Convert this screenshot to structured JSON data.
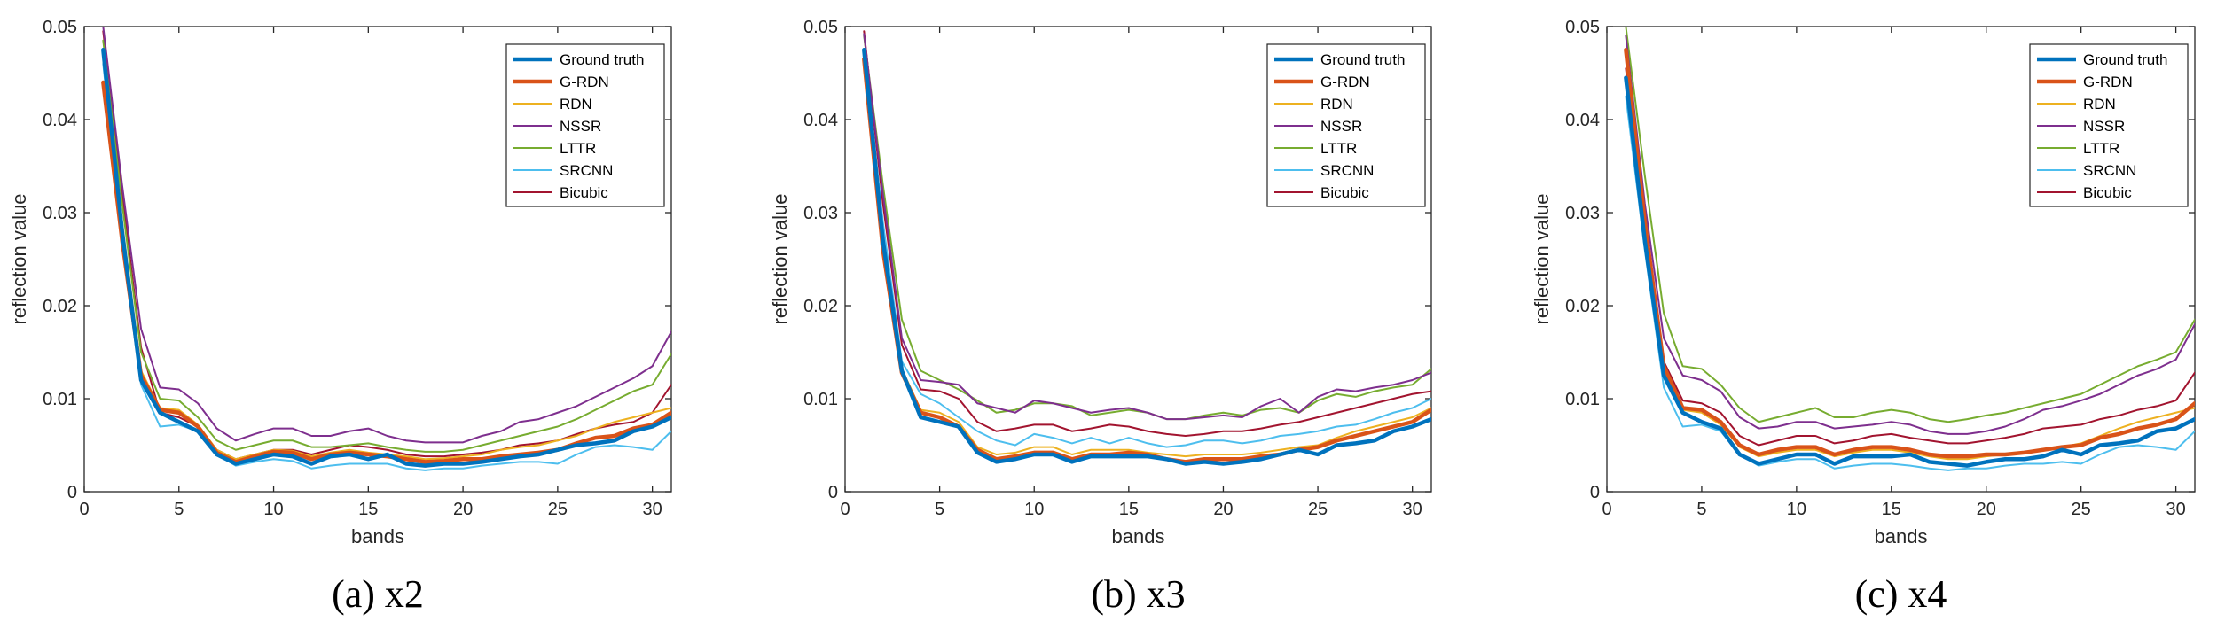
{
  "chart_data": [
    {
      "type": "line",
      "caption": "(a) x2",
      "xlabel": "bands",
      "ylabel": "reflection value",
      "xlim": [
        0,
        31
      ],
      "ylim": [
        0,
        0.05
      ],
      "xticks": [
        "0",
        "5",
        "10",
        "15",
        "20",
        "25",
        "30"
      ],
      "yticks": [
        "0",
        "0.01",
        "0.02",
        "0.03",
        "0.04",
        "0.05"
      ],
      "legend_position": "top-right",
      "x": [
        1,
        2,
        3,
        4,
        5,
        6,
        7,
        8,
        9,
        10,
        11,
        12,
        13,
        14,
        15,
        16,
        17,
        18,
        19,
        20,
        21,
        22,
        23,
        24,
        25,
        26,
        27,
        28,
        29,
        30,
        31
      ],
      "series": [
        {
          "name": "Ground truth",
          "color": "#0072bd",
          "width": 4.5,
          "values": [
            0.0475,
            0.028,
            0.012,
            0.0085,
            0.0075,
            0.0065,
            0.004,
            0.003,
            0.0035,
            0.004,
            0.0038,
            0.003,
            0.0038,
            0.004,
            0.0035,
            0.004,
            0.003,
            0.0028,
            0.003,
            0.003,
            0.0032,
            0.0035,
            0.0038,
            0.004,
            0.0045,
            0.005,
            0.0052,
            0.0055,
            0.0065,
            0.007,
            0.008
          ]
        },
        {
          "name": "G-RDN",
          "color": "#d95319",
          "width": 4.5,
          "values": [
            0.044,
            0.027,
            0.0125,
            0.0088,
            0.0085,
            0.007,
            0.0042,
            0.0032,
            0.0038,
            0.0043,
            0.0042,
            0.0035,
            0.004,
            0.0042,
            0.004,
            0.0038,
            0.0035,
            0.0032,
            0.0033,
            0.0035,
            0.0035,
            0.0038,
            0.004,
            0.0042,
            0.0045,
            0.0052,
            0.0058,
            0.006,
            0.0068,
            0.0072,
            0.0085
          ]
        },
        {
          "name": "RDN",
          "color": "#edb120",
          "width": 2,
          "values": [
            0.0465,
            0.029,
            0.013,
            0.009,
            0.0088,
            0.0072,
            0.0045,
            0.0035,
            0.004,
            0.0045,
            0.0044,
            0.0038,
            0.0042,
            0.0045,
            0.0042,
            0.004,
            0.0038,
            0.0035,
            0.0036,
            0.0038,
            0.004,
            0.0045,
            0.0048,
            0.005,
            0.0055,
            0.006,
            0.0068,
            0.0075,
            0.008,
            0.0085,
            0.009
          ]
        },
        {
          "name": "NSSR",
          "color": "#7e2f8e",
          "width": 2,
          "values": [
            0.05,
            0.033,
            0.0175,
            0.0112,
            0.011,
            0.0095,
            0.0068,
            0.0055,
            0.0062,
            0.0068,
            0.0068,
            0.006,
            0.006,
            0.0065,
            0.0068,
            0.006,
            0.0055,
            0.0053,
            0.0053,
            0.0053,
            0.006,
            0.0065,
            0.0075,
            0.0078,
            0.0085,
            0.0092,
            0.0102,
            0.0112,
            0.0122,
            0.0135,
            0.0172
          ]
        },
        {
          "name": "LTTR",
          "color": "#77ac30",
          "width": 2,
          "values": [
            0.0485,
            0.031,
            0.015,
            0.01,
            0.0098,
            0.008,
            0.0055,
            0.0045,
            0.005,
            0.0055,
            0.0055,
            0.0048,
            0.0048,
            0.005,
            0.0052,
            0.0048,
            0.0045,
            0.0043,
            0.0043,
            0.0045,
            0.005,
            0.0055,
            0.006,
            0.0065,
            0.007,
            0.0078,
            0.0088,
            0.0098,
            0.0108,
            0.0115,
            0.0148
          ]
        },
        {
          "name": "SRCNN",
          "color": "#4dbeee",
          "width": 2,
          "values": [
            0.046,
            0.027,
            0.0115,
            0.007,
            0.0072,
            0.0065,
            0.004,
            0.0028,
            0.0032,
            0.0035,
            0.0033,
            0.0025,
            0.0028,
            0.003,
            0.003,
            0.003,
            0.0025,
            0.0023,
            0.0025,
            0.0025,
            0.0028,
            0.003,
            0.0032,
            0.0032,
            0.003,
            0.004,
            0.0048,
            0.005,
            0.0048,
            0.0045,
            0.0065
          ]
        },
        {
          "name": "Bicubic",
          "color": "#a2142f",
          "width": 2,
          "values": [
            0.0495,
            0.032,
            0.0155,
            0.0085,
            0.008,
            0.007,
            0.0045,
            0.0035,
            0.004,
            0.0045,
            0.0045,
            0.004,
            0.0045,
            0.005,
            0.0048,
            0.0045,
            0.004,
            0.0038,
            0.0038,
            0.004,
            0.0042,
            0.0045,
            0.005,
            0.0052,
            0.0055,
            0.0062,
            0.0068,
            0.0072,
            0.0075,
            0.0085,
            0.0115
          ]
        }
      ]
    },
    {
      "type": "line",
      "caption": "(b) x3",
      "xlabel": "bands",
      "ylabel": "reflection value",
      "xlim": [
        0,
        31
      ],
      "ylim": [
        0,
        0.05
      ],
      "xticks": [
        "0",
        "5",
        "10",
        "15",
        "20",
        "25",
        "30"
      ],
      "yticks": [
        "0",
        "0.01",
        "0.02",
        "0.03",
        "0.04",
        "0.05"
      ],
      "legend_position": "top-right",
      "x": [
        1,
        2,
        3,
        4,
        5,
        6,
        7,
        8,
        9,
        10,
        11,
        12,
        13,
        14,
        15,
        16,
        17,
        18,
        19,
        20,
        21,
        22,
        23,
        24,
        25,
        26,
        27,
        28,
        29,
        30,
        31
      ],
      "series": [
        {
          "name": "Ground truth",
          "color": "#0072bd",
          "width": 4.5,
          "values": [
            0.0475,
            0.027,
            0.013,
            0.008,
            0.0075,
            0.007,
            0.0042,
            0.0032,
            0.0035,
            0.004,
            0.004,
            0.0032,
            0.0038,
            0.0038,
            0.0038,
            0.0038,
            0.0035,
            0.003,
            0.0032,
            0.003,
            0.0032,
            0.0035,
            0.004,
            0.0045,
            0.004,
            0.005,
            0.0052,
            0.0055,
            0.0065,
            0.007,
            0.0078
          ]
        },
        {
          "name": "G-RDN",
          "color": "#d95319",
          "width": 4.5,
          "values": [
            0.0465,
            0.026,
            0.0128,
            0.0085,
            0.008,
            0.007,
            0.0045,
            0.0035,
            0.0038,
            0.0042,
            0.0042,
            0.0035,
            0.004,
            0.004,
            0.0042,
            0.004,
            0.0035,
            0.0032,
            0.0035,
            0.0035,
            0.0035,
            0.0038,
            0.004,
            0.0045,
            0.0048,
            0.0055,
            0.006,
            0.0065,
            0.007,
            0.0075,
            0.0088
          ]
        },
        {
          "name": "RDN",
          "color": "#edb120",
          "width": 2,
          "values": [
            0.047,
            0.0275,
            0.0132,
            0.0088,
            0.0085,
            0.0075,
            0.0048,
            0.004,
            0.0042,
            0.0048,
            0.0048,
            0.004,
            0.0045,
            0.0045,
            0.0045,
            0.0042,
            0.004,
            0.0038,
            0.004,
            0.004,
            0.004,
            0.0042,
            0.0045,
            0.0048,
            0.005,
            0.0058,
            0.0065,
            0.007,
            0.0075,
            0.008,
            0.009
          ]
        },
        {
          "name": "NSSR",
          "color": "#7e2f8e",
          "width": 2,
          "values": [
            0.0492,
            0.032,
            0.0165,
            0.012,
            0.0118,
            0.0115,
            0.0095,
            0.009,
            0.0085,
            0.0098,
            0.0095,
            0.009,
            0.0085,
            0.0088,
            0.009,
            0.0085,
            0.0078,
            0.0078,
            0.008,
            0.0082,
            0.008,
            0.0092,
            0.01,
            0.0085,
            0.0102,
            0.011,
            0.0108,
            0.0112,
            0.0115,
            0.012,
            0.0128
          ]
        },
        {
          "name": "LTTR",
          "color": "#77ac30",
          "width": 2,
          "values": [
            0.049,
            0.033,
            0.0185,
            0.013,
            0.012,
            0.011,
            0.0098,
            0.0085,
            0.0088,
            0.0095,
            0.0095,
            0.0092,
            0.0082,
            0.0085,
            0.0088,
            0.0085,
            0.0078,
            0.0078,
            0.0082,
            0.0085,
            0.0082,
            0.0088,
            0.009,
            0.0085,
            0.0098,
            0.0105,
            0.0102,
            0.0108,
            0.0112,
            0.0115,
            0.0132
          ]
        },
        {
          "name": "SRCNN",
          "color": "#4dbeee",
          "width": 2,
          "values": [
            0.0475,
            0.029,
            0.014,
            0.0105,
            0.0095,
            0.008,
            0.0065,
            0.0055,
            0.005,
            0.0062,
            0.0058,
            0.0052,
            0.0058,
            0.0052,
            0.0058,
            0.0052,
            0.0048,
            0.005,
            0.0055,
            0.0055,
            0.0052,
            0.0055,
            0.006,
            0.0062,
            0.0065,
            0.007,
            0.0072,
            0.0078,
            0.0085,
            0.009,
            0.01
          ]
        },
        {
          "name": "Bicubic",
          "color": "#a2142f",
          "width": 2,
          "values": [
            0.0495,
            0.031,
            0.0158,
            0.011,
            0.0108,
            0.01,
            0.0075,
            0.0065,
            0.0068,
            0.0072,
            0.0072,
            0.0065,
            0.0068,
            0.0072,
            0.007,
            0.0065,
            0.0062,
            0.006,
            0.0062,
            0.0065,
            0.0065,
            0.0068,
            0.0072,
            0.0075,
            0.008,
            0.0085,
            0.009,
            0.0095,
            0.01,
            0.0105,
            0.0108
          ]
        }
      ]
    },
    {
      "type": "line",
      "caption": "(c) x4",
      "xlabel": "bands",
      "ylabel": "reflection value",
      "xlim": [
        0,
        31
      ],
      "ylim": [
        0,
        0.05
      ],
      "xticks": [
        "0",
        "5",
        "10",
        "15",
        "20",
        "25",
        "30"
      ],
      "yticks": [
        "0",
        "0.01",
        "0.02",
        "0.03",
        "0.04",
        "0.05"
      ],
      "legend_position": "top-right",
      "x": [
        1,
        2,
        3,
        4,
        5,
        6,
        7,
        8,
        9,
        10,
        11,
        12,
        13,
        14,
        15,
        16,
        17,
        18,
        19,
        20,
        21,
        22,
        23,
        24,
        25,
        26,
        27,
        28,
        29,
        30,
        31
      ],
      "series": [
        {
          "name": "Ground truth",
          "color": "#0072bd",
          "width": 4.5,
          "values": [
            0.0445,
            0.027,
            0.0125,
            0.0085,
            0.0075,
            0.0068,
            0.004,
            0.003,
            0.0035,
            0.004,
            0.004,
            0.003,
            0.0038,
            0.0038,
            0.0038,
            0.004,
            0.0032,
            0.003,
            0.0028,
            0.0032,
            0.0035,
            0.0035,
            0.0038,
            0.0045,
            0.004,
            0.005,
            0.0052,
            0.0055,
            0.0065,
            0.0068,
            0.0078
          ]
        },
        {
          "name": "G-RDN",
          "color": "#d95319",
          "width": 4.5,
          "values": [
            0.0475,
            0.029,
            0.0135,
            0.009,
            0.0088,
            0.0075,
            0.005,
            0.004,
            0.0045,
            0.0048,
            0.0048,
            0.004,
            0.0045,
            0.0048,
            0.0048,
            0.0045,
            0.004,
            0.0038,
            0.0038,
            0.004,
            0.004,
            0.0042,
            0.0045,
            0.0048,
            0.005,
            0.0058,
            0.0062,
            0.0068,
            0.0072,
            0.0078,
            0.0095
          ]
        },
        {
          "name": "RDN",
          "color": "#edb120",
          "width": 2,
          "values": [
            0.047,
            0.0285,
            0.0132,
            0.0088,
            0.0085,
            0.0072,
            0.0048,
            0.0038,
            0.0042,
            0.0045,
            0.0045,
            0.0038,
            0.0042,
            0.0045,
            0.0045,
            0.0042,
            0.0038,
            0.0035,
            0.0035,
            0.0038,
            0.004,
            0.0042,
            0.0045,
            0.0048,
            0.0052,
            0.006,
            0.0068,
            0.0075,
            0.008,
            0.0085,
            0.009
          ]
        },
        {
          "name": "NSSR",
          "color": "#7e2f8e",
          "width": 2,
          "values": [
            0.049,
            0.031,
            0.0165,
            0.0125,
            0.012,
            0.0108,
            0.008,
            0.0068,
            0.007,
            0.0075,
            0.0075,
            0.0068,
            0.007,
            0.0072,
            0.0075,
            0.0072,
            0.0065,
            0.0062,
            0.0062,
            0.0065,
            0.007,
            0.0078,
            0.0088,
            0.0092,
            0.0098,
            0.0105,
            0.0115,
            0.0125,
            0.0132,
            0.0142,
            0.018
          ]
        },
        {
          "name": "LTTR",
          "color": "#77ac30",
          "width": 2,
          "values": [
            0.05,
            0.034,
            0.0192,
            0.0135,
            0.0132,
            0.0115,
            0.009,
            0.0075,
            0.008,
            0.0085,
            0.009,
            0.008,
            0.008,
            0.0085,
            0.0088,
            0.0085,
            0.0078,
            0.0075,
            0.0078,
            0.0082,
            0.0085,
            0.009,
            0.0095,
            0.01,
            0.0105,
            0.0115,
            0.0125,
            0.0135,
            0.0142,
            0.015,
            0.0185
          ]
        },
        {
          "name": "SRCNN",
          "color": "#4dbeee",
          "width": 2,
          "values": [
            0.0425,
            0.026,
            0.0112,
            0.007,
            0.0072,
            0.0065,
            0.004,
            0.0028,
            0.0032,
            0.0035,
            0.0035,
            0.0025,
            0.0028,
            0.003,
            0.003,
            0.0028,
            0.0025,
            0.0023,
            0.0025,
            0.0025,
            0.0028,
            0.003,
            0.003,
            0.0032,
            0.003,
            0.004,
            0.0048,
            0.005,
            0.0048,
            0.0045,
            0.0065
          ]
        },
        {
          "name": "Bicubic",
          "color": "#a2142f",
          "width": 2,
          "values": [
            0.0455,
            0.0285,
            0.014,
            0.0098,
            0.0095,
            0.0085,
            0.006,
            0.005,
            0.0055,
            0.006,
            0.006,
            0.0052,
            0.0055,
            0.006,
            0.0062,
            0.0058,
            0.0055,
            0.0052,
            0.0052,
            0.0055,
            0.0058,
            0.0062,
            0.0068,
            0.007,
            0.0072,
            0.0078,
            0.0082,
            0.0088,
            0.0092,
            0.0098,
            0.0128
          ]
        }
      ]
    }
  ]
}
